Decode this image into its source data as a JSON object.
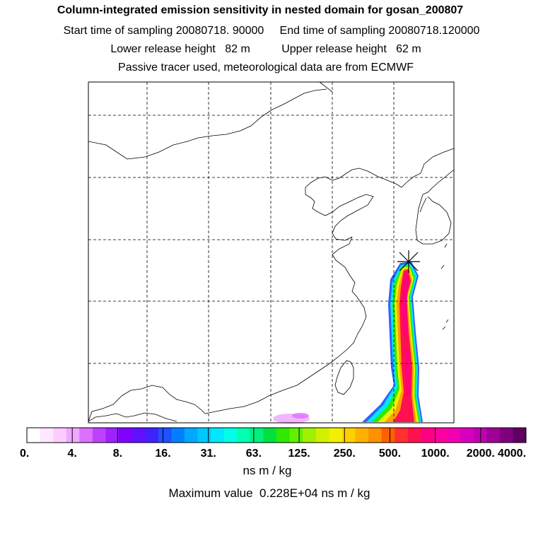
{
  "title": {
    "line1": "Column-integrated emission sensitivity in nested domain for gosan_200807",
    "line2": "Start time of sampling 20080718. 90000     End time of sampling 20080718.120000",
    "line3": "Lower release height   82 m          Upper release height   62 m",
    "line4": "Passive tracer used, meteorological data are from ECMWF"
  },
  "chart_data": {
    "type": "heatmap",
    "description_fields": {
      "units": "ns m / kg",
      "maximum_value_text": "Maximum value  0.228E+04 ns m / kg"
    },
    "colorbar": {
      "tick_labels": [
        "0.",
        "4.",
        "8.",
        "16.",
        "31.",
        "63.",
        "125.",
        "250.",
        "500.",
        "1000.",
        "2000.",
        "4000."
      ],
      "levels": [
        0,
        4,
        8,
        16,
        31,
        63,
        125,
        250,
        500,
        1000,
        2000,
        4000
      ],
      "colors": [
        "#ffffff",
        "#ffe8ff",
        "#ffccff",
        "#f0a8ff",
        "#dd70ff",
        "#c040ff",
        "#a020ff",
        "#8000ff",
        "#6010ff",
        "#4020ff",
        "#2050ff",
        "#0080ff",
        "#00a8ff",
        "#00c8ff",
        "#00e8ff",
        "#00ffe8",
        "#00ffb0",
        "#00f080",
        "#00e040",
        "#30e800",
        "#60f000",
        "#a0f000",
        "#d0f000",
        "#f0f000",
        "#ffd000",
        "#ffb000",
        "#ff9000",
        "#ff6000",
        "#ff3030",
        "#ff1050",
        "#ff0080",
        "#ff00a0",
        "#f000b0",
        "#d800c0",
        "#c000b0",
        "#a00098",
        "#800080",
        "#600060"
      ]
    },
    "receptor": "gosan",
    "grid": {
      "on": true,
      "style": "dashed"
    }
  },
  "colors": {
    "background": "#ffffff",
    "coast": "#000000",
    "grid": "#000000"
  }
}
